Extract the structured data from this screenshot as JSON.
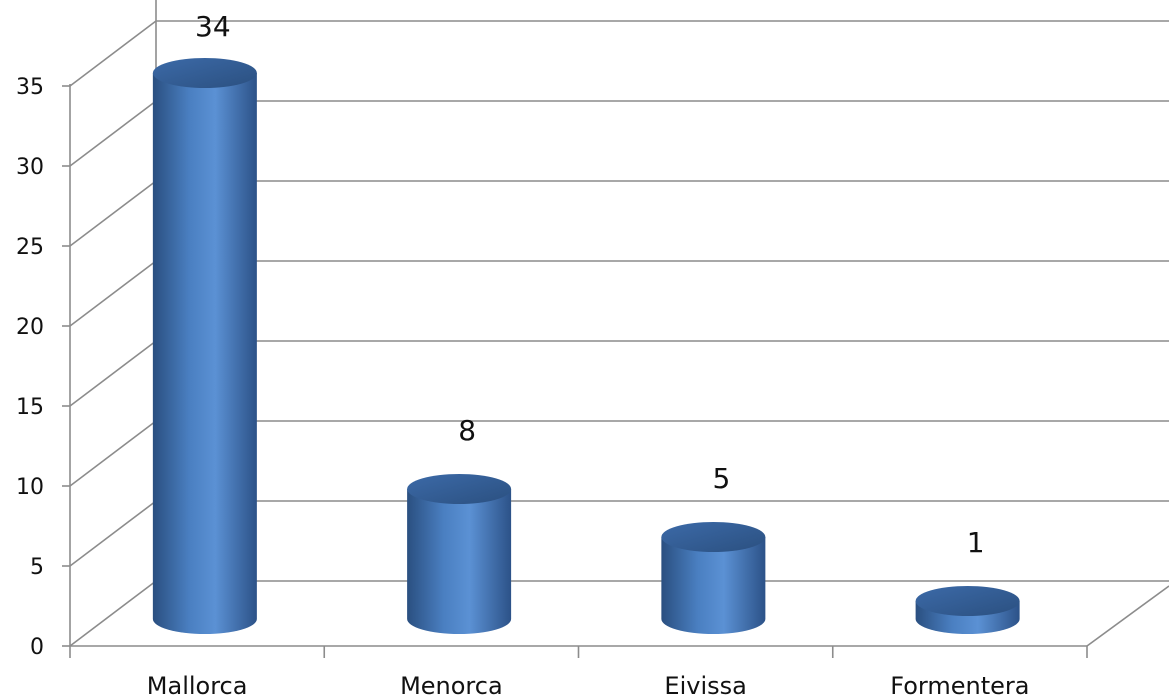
{
  "chart_data": {
    "type": "bar",
    "style": "3d-cylinder",
    "categories": [
      "Mallorca",
      "Menorca",
      "Eivissa",
      "Formentera"
    ],
    "values": [
      34,
      8,
      5,
      1
    ],
    "data_labels": [
      "34",
      "8",
      "5",
      "1"
    ],
    "ylim": [
      0,
      35
    ],
    "yticks": [
      0,
      5,
      10,
      15,
      20,
      25,
      30,
      35
    ],
    "ytick_labels": [
      "0",
      "5",
      "10",
      "15",
      "20",
      "25",
      "30",
      "35"
    ],
    "grid": true,
    "legend": "none",
    "title": "",
    "xlabel": "",
    "ylabel": "",
    "colors": {
      "bar": "#4f81bd",
      "bar_dark": "#2c4d75",
      "bar_light": "#6fa0dc",
      "grid": "#8c8c8c"
    }
  }
}
